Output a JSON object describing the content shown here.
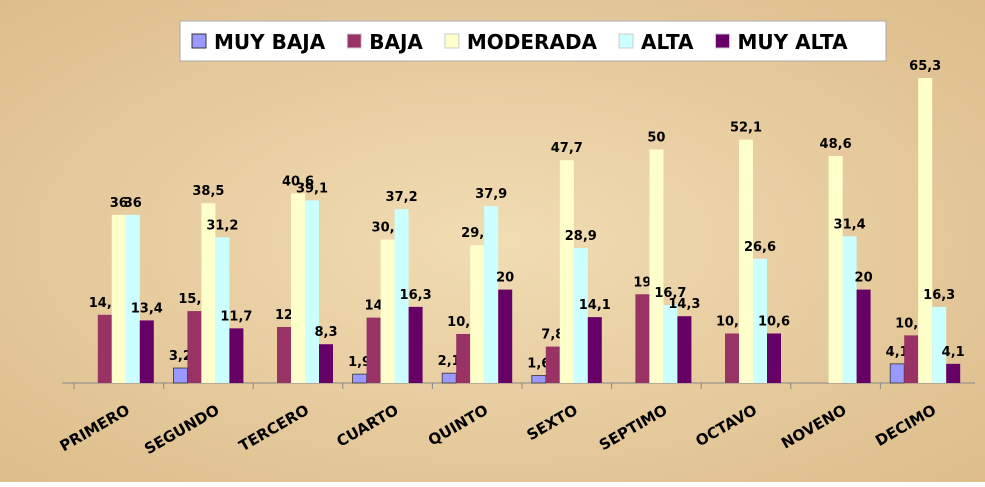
{
  "chart_data": {
    "type": "bar",
    "categories": [
      "PRIMERO",
      "SEGUNDO",
      "TERCERO",
      "CUARTO",
      "QUINTO",
      "SEXTO",
      "SEPTIMO",
      "OCTAVO",
      "NOVENO",
      "DECIMO"
    ],
    "series": [
      {
        "name": "MUY BAJA",
        "color": "#9999ff",
        "values": [
          null,
          3.2,
          null,
          1.9,
          2.1,
          1.6,
          null,
          null,
          null,
          4.1
        ],
        "value_labels": [
          null,
          "3,2",
          null,
          "1,9",
          "2,1",
          "1,6",
          null,
          null,
          null,
          "4,1"
        ]
      },
      {
        "name": "BAJA",
        "color": "#993366",
        "values": [
          14.6,
          15.4,
          12,
          14,
          10.5,
          7.8,
          19,
          10.6,
          null,
          10.2
        ],
        "value_labels": [
          "14,6",
          "15,4",
          "12",
          "14",
          "10,5",
          "7,8",
          "19",
          "10,6",
          null,
          "10,2"
        ]
      },
      {
        "name": "MODERADA",
        "color": "#ffffcc",
        "values": [
          36,
          38.5,
          40.6,
          30.7,
          29.5,
          47.7,
          50,
          52.1,
          48.6,
          65.3
        ],
        "value_labels": [
          "36",
          "38,5",
          "40,6",
          "30,7",
          "29,5",
          "47,7",
          "50",
          "52,1",
          "48,6",
          "65,3"
        ]
      },
      {
        "name": "ALTA",
        "color": "#ccffff",
        "values": [
          36,
          31.2,
          39.1,
          37.2,
          37.9,
          28.9,
          16.7,
          26.6,
          31.4,
          16.3
        ],
        "value_labels": [
          "36",
          "31,2",
          "39,1",
          "37,2",
          "37,9",
          "28,9",
          "16,7",
          "26,6",
          "31,4",
          "16,3"
        ]
      },
      {
        "name": "MUY ALTA",
        "color": "#660066",
        "values": [
          13.4,
          11.7,
          8.3,
          16.3,
          20,
          14.1,
          14.3,
          10.6,
          20,
          4.1
        ],
        "value_labels": [
          "13,4",
          "11,7",
          "8,3",
          "16,3",
          "20",
          "14,1",
          "14,3",
          "10,6",
          "20",
          "4,1"
        ]
      }
    ],
    "legend": "top"
  }
}
